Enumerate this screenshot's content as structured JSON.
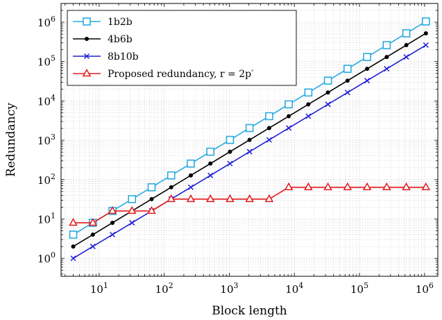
{
  "chart_data": {
    "type": "line",
    "xlabel": "Block length",
    "ylabel": "Redundancy",
    "xscale": "log",
    "yscale": "log",
    "xlim": [
      2.6,
      1600000
    ],
    "ylim": [
      0.35,
      3000000
    ],
    "grid": true,
    "legend_position": "top-left",
    "x_ticks": [
      {
        "value": 10,
        "base": "10",
        "exp": "1"
      },
      {
        "value": 100,
        "base": "10",
        "exp": "2"
      },
      {
        "value": 1000,
        "base": "10",
        "exp": "3"
      },
      {
        "value": 10000,
        "base": "10",
        "exp": "4"
      },
      {
        "value": 100000,
        "base": "10",
        "exp": "5"
      },
      {
        "value": 1000000,
        "base": "10",
        "exp": "6"
      }
    ],
    "y_ticks": [
      {
        "value": 1,
        "base": "10",
        "exp": "0"
      },
      {
        "value": 10,
        "base": "10",
        "exp": "1"
      },
      {
        "value": 100,
        "base": "10",
        "exp": "2"
      },
      {
        "value": 1000,
        "base": "10",
        "exp": "3"
      },
      {
        "value": 10000,
        "base": "10",
        "exp": "4"
      },
      {
        "value": 100000,
        "base": "10",
        "exp": "5"
      },
      {
        "value": 1000000,
        "base": "10",
        "exp": "6"
      }
    ],
    "x": [
      4,
      8,
      16,
      32,
      64,
      128,
      256,
      512,
      1024,
      2048,
      4096,
      8192,
      16384,
      32768,
      65536,
      131072,
      262144,
      524288,
      1048576
    ],
    "series": [
      {
        "name": "1b2b",
        "color": "#29abe2",
        "marker": "square",
        "values": [
          4,
          8,
          16,
          32,
          64,
          128,
          256,
          512,
          1024,
          2048,
          4096,
          8192,
          16384,
          32768,
          65536,
          131072,
          262144,
          524288,
          1048576
        ]
      },
      {
        "name": "4b6b",
        "color": "#000000",
        "marker": "circle",
        "values": [
          2,
          4,
          8,
          16,
          32,
          64,
          128,
          256,
          512,
          1024,
          2048,
          4096,
          8192,
          16384,
          32768,
          65536,
          131072,
          262144,
          524288
        ]
      },
      {
        "name": "8b10b",
        "color": "#1f1fd6",
        "marker": "x",
        "values": [
          1,
          2,
          4,
          8,
          16,
          32,
          64,
          128,
          256,
          512,
          1024,
          2048,
          4096,
          8192,
          16384,
          32768,
          65536,
          131072,
          262144
        ]
      },
      {
        "name": "Proposed redundancy, r = 2p′",
        "color": "#e31a1c",
        "marker": "triangle",
        "values": [
          8,
          8,
          16,
          16,
          16,
          32,
          32,
          32,
          32,
          32,
          32,
          64,
          64,
          64,
          64,
          64,
          64,
          64,
          64
        ]
      }
    ]
  }
}
